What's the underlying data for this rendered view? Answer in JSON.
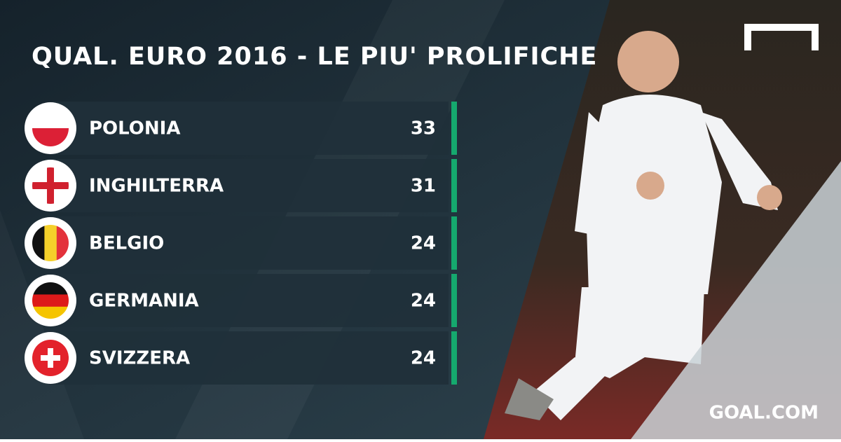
{
  "title": "QUAL. EURO 2016 - LE PIU' PROLIFICHE",
  "rows": [
    {
      "team": "POLONIA",
      "goals": 33
    },
    {
      "team": "INGHILTERRA",
      "goals": 31
    },
    {
      "team": "BELGIO",
      "goals": 24
    },
    {
      "team": "GERMANIA",
      "goals": 24
    },
    {
      "team": "SVIZZERA",
      "goals": 24
    }
  ],
  "brand": "GOAL.COM"
}
